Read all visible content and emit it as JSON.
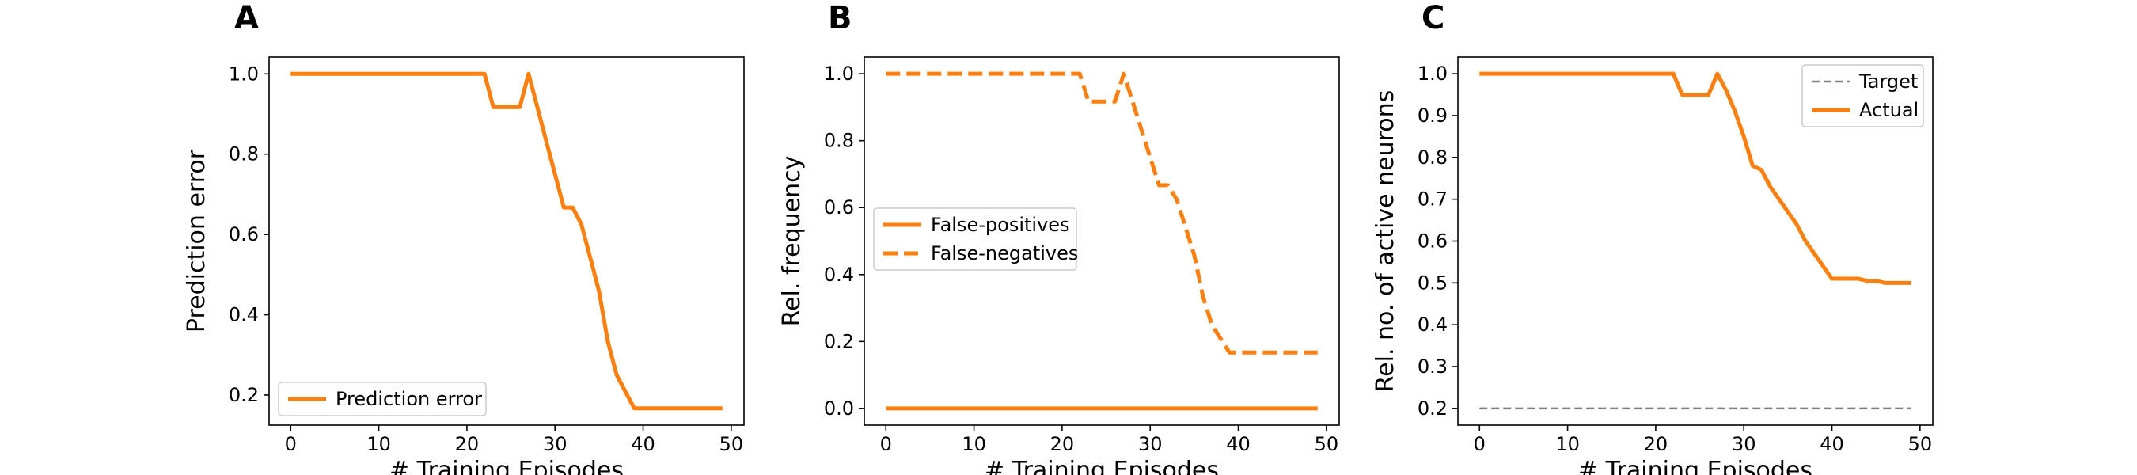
{
  "colors": {
    "accent": "#ff7f0e",
    "target": "#808080",
    "frame": "#000000",
    "legend_border": "#cccccc"
  },
  "chart_data": [
    {
      "type": "line",
      "panel": "A",
      "xlabel": "# Training Episodes",
      "ylabel": "Prediction error",
      "xlim": [
        -2.45,
        51.45
      ],
      "ylim": [
        0.125,
        1.042
      ],
      "xticks": [
        0,
        10,
        20,
        30,
        40,
        50
      ],
      "yticks": [
        0.2,
        0.4,
        0.6,
        0.8,
        1.0
      ],
      "ytick_labels": [
        "0.2",
        "0.4",
        "0.6",
        "0.8",
        "1.0"
      ],
      "legend_position": "lower-left",
      "series": [
        {
          "name": "Prediction error",
          "style": "solid",
          "x": [
            0,
            1,
            2,
            3,
            4,
            5,
            6,
            7,
            8,
            9,
            10,
            11,
            12,
            13,
            14,
            15,
            16,
            17,
            18,
            19,
            20,
            21,
            22,
            23,
            24,
            25,
            26,
            27,
            28,
            29,
            30,
            31,
            32,
            33,
            34,
            35,
            36,
            37,
            38,
            39,
            40,
            41,
            42,
            43,
            44,
            45,
            46,
            47,
            48,
            49
          ],
          "y": [
            1,
            1,
            1,
            1,
            1,
            1,
            1,
            1,
            1,
            1,
            1,
            1,
            1,
            1,
            1,
            1,
            1,
            1,
            1,
            1,
            1,
            1,
            1,
            0.917,
            0.917,
            0.917,
            0.917,
            1,
            0.917,
            0.833,
            0.75,
            0.667,
            0.667,
            0.625,
            0.542,
            0.458,
            0.333,
            0.25,
            0.208,
            0.167,
            0.167,
            0.167,
            0.167,
            0.167,
            0.167,
            0.167,
            0.167,
            0.167,
            0.167,
            0.167
          ]
        }
      ]
    },
    {
      "type": "line",
      "panel": "B",
      "xlabel": "# Training Episodes",
      "ylabel": "Rel. frequency",
      "xlim": [
        -2.45,
        51.45
      ],
      "ylim": [
        -0.05,
        1.05
      ],
      "xticks": [
        0,
        10,
        20,
        30,
        40,
        50
      ],
      "yticks": [
        0.0,
        0.2,
        0.4,
        0.6,
        0.8,
        1.0
      ],
      "ytick_labels": [
        "0.0",
        "0.2",
        "0.4",
        "0.6",
        "0.8",
        "1.0"
      ],
      "legend_position": "center-left",
      "series": [
        {
          "name": "False-positives",
          "style": "solid",
          "x": [
            0,
            49
          ],
          "y": [
            0,
            0
          ]
        },
        {
          "name": "False-negatives",
          "style": "dashed",
          "x": [
            0,
            1,
            2,
            3,
            4,
            5,
            6,
            7,
            8,
            9,
            10,
            11,
            12,
            13,
            14,
            15,
            16,
            17,
            18,
            19,
            20,
            21,
            22,
            23,
            24,
            25,
            26,
            27,
            28,
            29,
            30,
            31,
            32,
            33,
            34,
            35,
            36,
            37,
            38,
            39,
            40,
            41,
            42,
            43,
            44,
            45,
            46,
            47,
            48,
            49
          ],
          "y": [
            1,
            1,
            1,
            1,
            1,
            1,
            1,
            1,
            1,
            1,
            1,
            1,
            1,
            1,
            1,
            1,
            1,
            1,
            1,
            1,
            1,
            1,
            1,
            0.917,
            0.917,
            0.917,
            0.917,
            1,
            0.917,
            0.833,
            0.75,
            0.667,
            0.667,
            0.625,
            0.542,
            0.458,
            0.333,
            0.25,
            0.208,
            0.167,
            0.167,
            0.167,
            0.167,
            0.167,
            0.167,
            0.167,
            0.167,
            0.167,
            0.167,
            0.167
          ]
        }
      ]
    },
    {
      "type": "line",
      "panel": "C",
      "xlabel": "# Training Episodes",
      "ylabel": "Rel. no. of active neurons",
      "xlim": [
        -2.45,
        51.45
      ],
      "ylim": [
        0.16,
        1.04
      ],
      "xticks": [
        0,
        10,
        20,
        30,
        40,
        50
      ],
      "yticks": [
        0.2,
        0.3,
        0.4,
        0.5,
        0.6,
        0.7,
        0.8,
        0.9,
        1.0
      ],
      "ytick_labels": [
        "0.2",
        "0.3",
        "0.4",
        "0.5",
        "0.6",
        "0.7",
        "0.8",
        "0.9",
        "1.0"
      ],
      "legend_position": "upper-right",
      "series": [
        {
          "name": "Target",
          "style": "dashed-thin",
          "x": [
            0,
            49
          ],
          "y": [
            0.2,
            0.2
          ]
        },
        {
          "name": "Actual",
          "style": "solid",
          "x": [
            0,
            1,
            2,
            3,
            4,
            5,
            6,
            7,
            8,
            9,
            10,
            11,
            12,
            13,
            14,
            15,
            16,
            17,
            18,
            19,
            20,
            21,
            22,
            23,
            24,
            25,
            26,
            27,
            28,
            29,
            30,
            31,
            32,
            33,
            34,
            35,
            36,
            37,
            38,
            39,
            40,
            41,
            42,
            43,
            44,
            45,
            46,
            47,
            48,
            49
          ],
          "y": [
            1,
            1,
            1,
            1,
            1,
            1,
            1,
            1,
            1,
            1,
            1,
            1,
            1,
            1,
            1,
            1,
            1,
            1,
            1,
            1,
            1,
            1,
            1,
            0.95,
            0.95,
            0.95,
            0.95,
            1,
            0.96,
            0.91,
            0.85,
            0.78,
            0.77,
            0.73,
            0.7,
            0.67,
            0.64,
            0.6,
            0.57,
            0.54,
            0.51,
            0.51,
            0.51,
            0.51,
            0.505,
            0.505,
            0.5,
            0.5,
            0.5,
            0.5
          ]
        }
      ]
    }
  ]
}
